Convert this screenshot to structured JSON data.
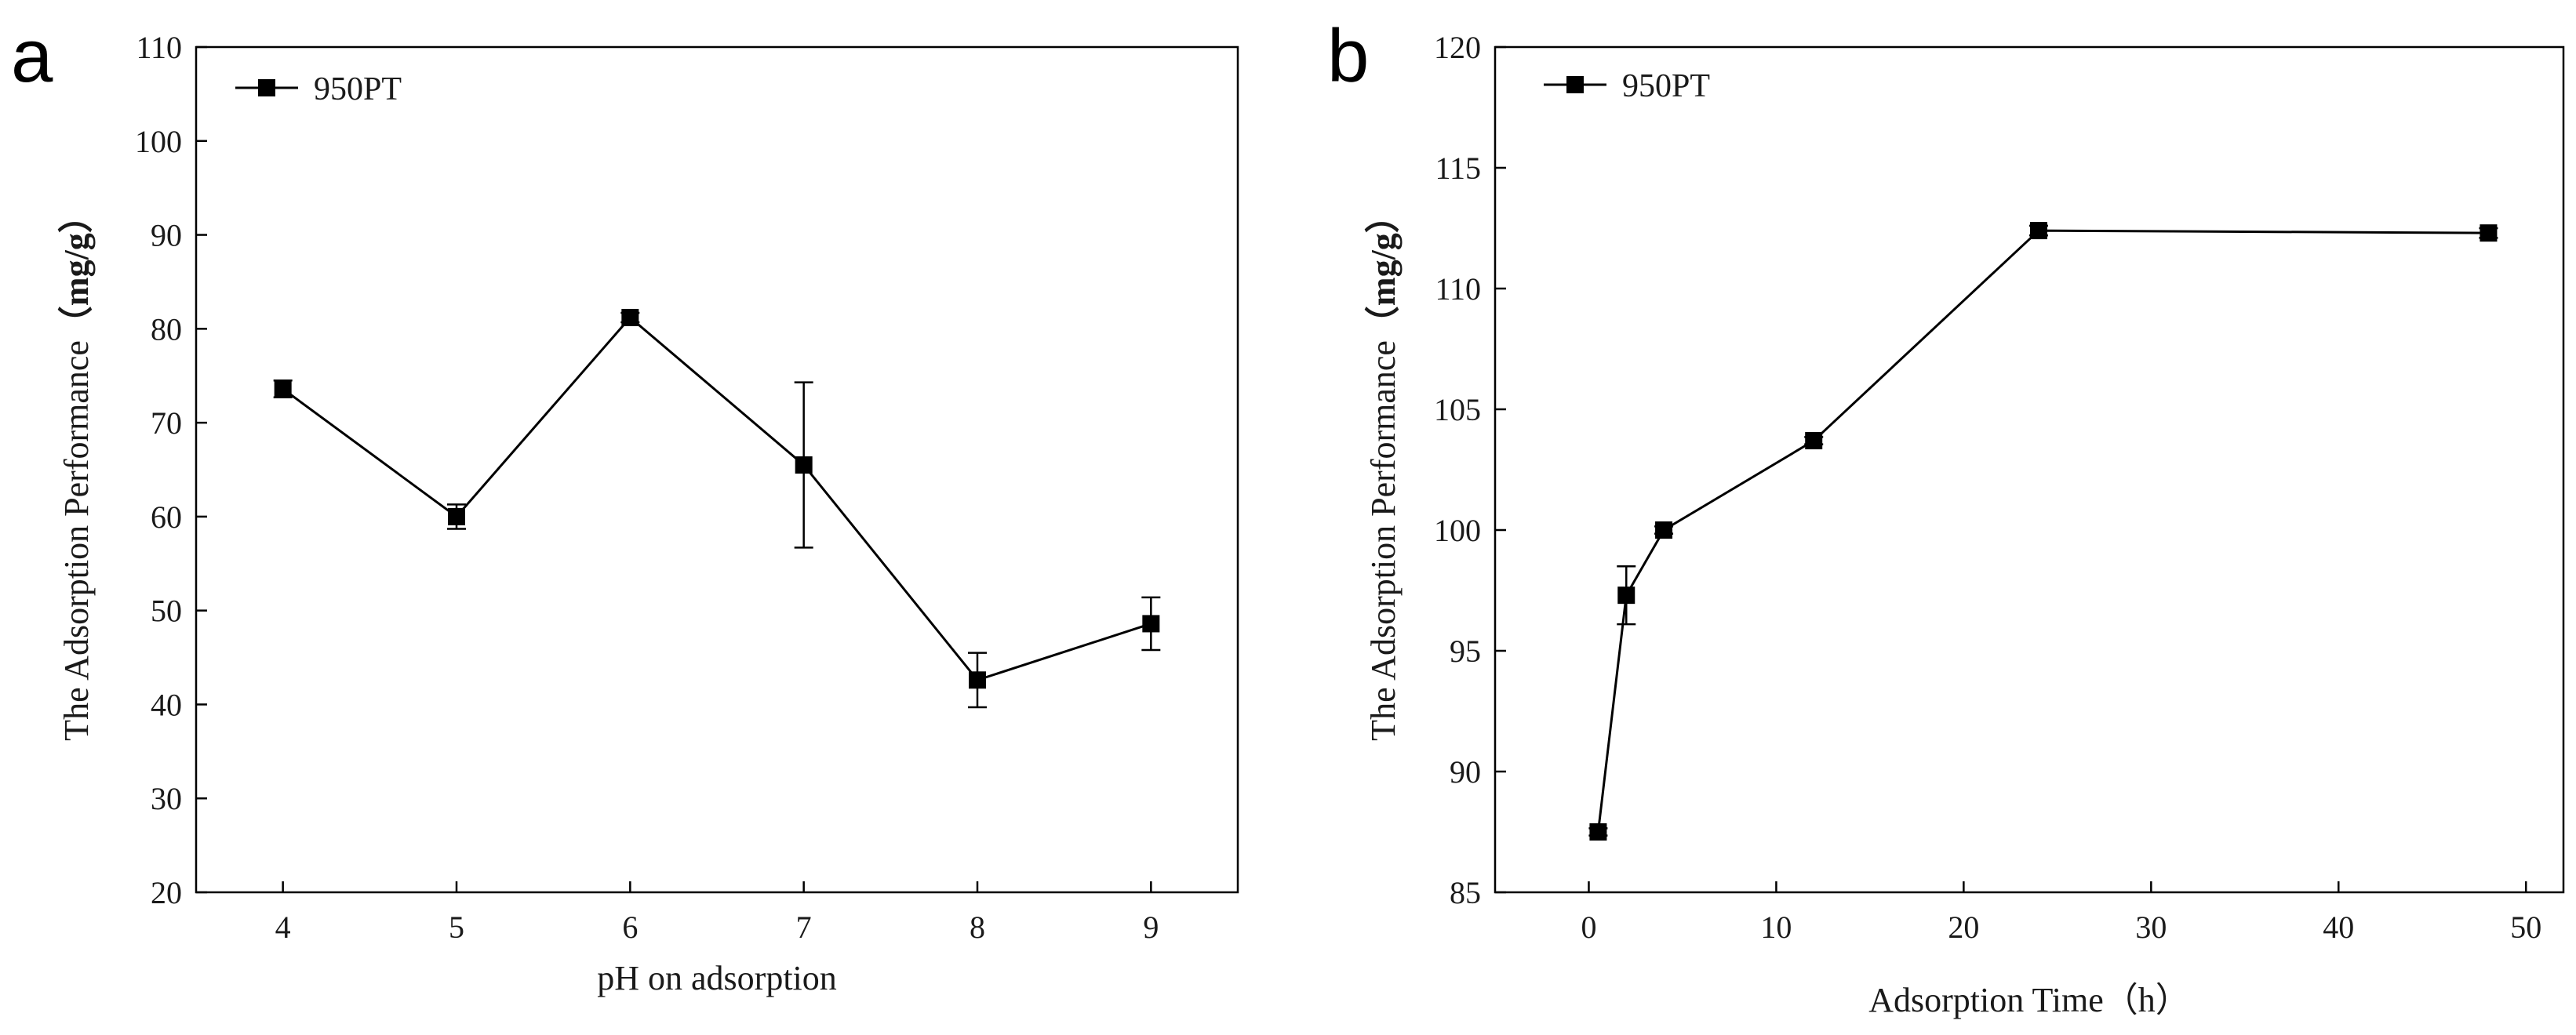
{
  "figure": {
    "line_color": "#000000",
    "background": "#ffffff"
  },
  "chart_data": [
    {
      "panel_label": "a",
      "type": "line",
      "title": "",
      "xlabel": "pH on adsorption",
      "ylabel_main": "The Adsorption Performance",
      "ylabel_unit": "（mg/g）",
      "xlim": [
        3.5,
        9.5
      ],
      "ylim": [
        20,
        110
      ],
      "xticks": [
        4,
        5,
        6,
        7,
        8,
        9
      ],
      "yticks": [
        20,
        30,
        40,
        50,
        60,
        70,
        80,
        90,
        100,
        110
      ],
      "legend": {
        "position": "top-left"
      },
      "series": [
        {
          "name": "950PT",
          "marker": "square",
          "x": [
            4,
            5,
            6,
            7,
            8,
            9
          ],
          "y": [
            73.6,
            60.0,
            81.2,
            65.5,
            42.6,
            48.6
          ],
          "error": [
            0.9,
            1.3,
            0.5,
            8.8,
            2.9,
            2.8
          ]
        }
      ]
    },
    {
      "panel_label": "b",
      "type": "line",
      "title": "",
      "xlabel": "Adsorption Time（h）",
      "ylabel_main": "The Adsorption Performance",
      "ylabel_unit": "（mg/g）",
      "xlim": [
        -5,
        52
      ],
      "ylim": [
        85,
        120
      ],
      "xticks": [
        0,
        10,
        20,
        30,
        40,
        50
      ],
      "yticks": [
        85,
        90,
        95,
        100,
        105,
        110,
        115,
        120
      ],
      "legend": {
        "position": "top-left"
      },
      "series": [
        {
          "name": "950PT",
          "marker": "square",
          "x": [
            0.5,
            2,
            4,
            12,
            24,
            48
          ],
          "y": [
            87.5,
            97.3,
            100.0,
            103.7,
            112.4,
            112.3
          ],
          "error": [
            0.15,
            1.2,
            0.15,
            0.15,
            0.2,
            0.2
          ]
        }
      ]
    }
  ]
}
